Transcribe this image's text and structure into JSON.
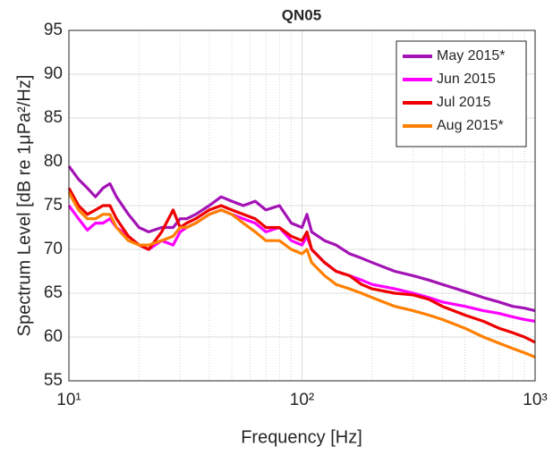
{
  "chart_data": {
    "type": "line",
    "title": "QN05",
    "xlabel": "Frequency [Hz]",
    "ylabel": "Spectrum Level [dB re 1μPa²/Hz]",
    "xscale": "log",
    "grid": true,
    "minor_grid": true,
    "legend_position": "northeast",
    "xlim": [
      10,
      1000
    ],
    "xticks": [
      {
        "value": 10,
        "label": "10¹"
      },
      {
        "value": 100,
        "label": "10²"
      },
      {
        "value": 1000,
        "label": "10³"
      }
    ],
    "xminorticks": [
      20,
      30,
      40,
      50,
      60,
      70,
      80,
      90,
      200,
      300,
      400,
      500,
      600,
      700,
      800,
      900
    ],
    "ylim": [
      55,
      95
    ],
    "yticks": [
      55,
      60,
      65,
      70,
      75,
      80,
      85,
      90,
      95
    ],
    "x": [
      10,
      11,
      12,
      13,
      14,
      15,
      16,
      18,
      20,
      22,
      25,
      28,
      30,
      32,
      35,
      40,
      45,
      50,
      56,
      63,
      70,
      80,
      90,
      100,
      105,
      110,
      125,
      140,
      160,
      180,
      200,
      250,
      300,
      350,
      400,
      500,
      600,
      700,
      800,
      900,
      1000
    ],
    "series": [
      {
        "name": "May 2015*",
        "color": "#a313b5",
        "values": [
          79.5,
          78,
          77,
          76,
          77,
          77.5,
          76,
          74,
          72.5,
          72,
          72.5,
          72.5,
          73.5,
          73.5,
          74,
          75,
          76,
          75.5,
          75,
          75.5,
          74.5,
          75,
          73,
          72.5,
          74,
          72,
          71,
          70.5,
          69.5,
          69,
          68.5,
          67.5,
          67,
          66.5,
          66,
          65.2,
          64.5,
          64,
          63.5,
          63.3,
          63
        ]
      },
      {
        "name": "Jun 2015",
        "color": "#ff00ff",
        "values": [
          75,
          73.5,
          72.2,
          73,
          73,
          73.5,
          72.5,
          71.5,
          70.5,
          70,
          71,
          70.5,
          72,
          72.5,
          73,
          74,
          74.5,
          74,
          73.5,
          73,
          72,
          72.5,
          71,
          70.5,
          71.5,
          70,
          68.5,
          67.5,
          67,
          66.5,
          66,
          65.5,
          65,
          64.5,
          64,
          63.5,
          63,
          62.7,
          62.3,
          62,
          61.8
        ]
      },
      {
        "name": "Jul 2015",
        "color": "#ee0000",
        "values": [
          77,
          75,
          74,
          74.5,
          75,
          75,
          73.5,
          71.5,
          70.5,
          70,
          72,
          74.5,
          72.5,
          73,
          73.5,
          74.5,
          75,
          74.5,
          74,
          73.5,
          72.5,
          72.5,
          71.5,
          71,
          72,
          70,
          68.5,
          67.5,
          67,
          66,
          65.5,
          65,
          64.8,
          64.3,
          63.5,
          62.5,
          61.8,
          61,
          60.5,
          60,
          59.4
        ]
      },
      {
        "name": "Aug 2015*",
        "color": "#ff8000",
        "values": [
          76.5,
          74.5,
          73.5,
          73.5,
          74,
          74,
          72.5,
          71,
          70.5,
          70.5,
          71,
          71.5,
          72.5,
          72.5,
          73,
          74,
          74.5,
          74,
          73,
          72,
          71,
          71,
          70,
          69.5,
          70,
          68.5,
          67,
          66,
          65.5,
          65,
          64.5,
          63.5,
          63,
          62.5,
          62,
          61,
          60,
          59.3,
          58.7,
          58.2,
          57.7
        ]
      }
    ]
  }
}
